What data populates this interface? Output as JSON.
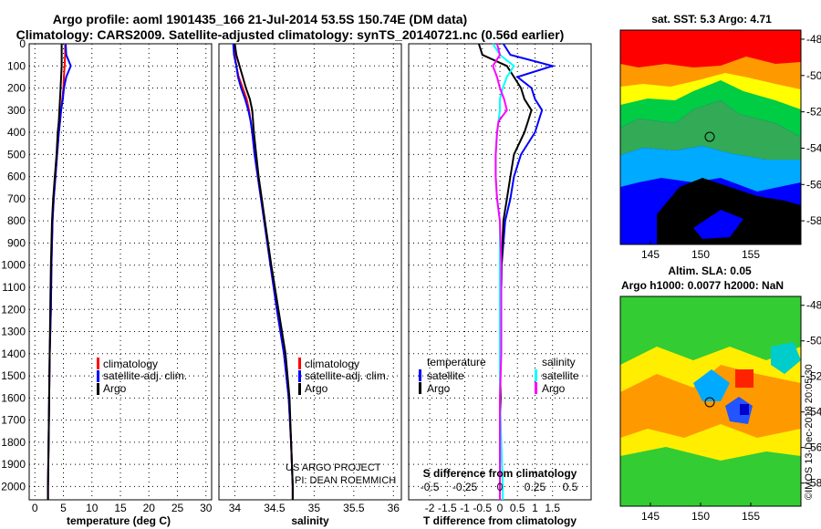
{
  "titles": {
    "line1": "Argo profile: aoml 1901435_166 21-Jul-2014 53.5S 150.74E (DM data)",
    "line2": "Climatology: CARS2009. Satellite-adjusted climatology: synTS_20140721.nc (0.56d earlier)"
  },
  "colors": {
    "climatology": "#ff0000",
    "satellite": "#0000ff",
    "argo": "#000000",
    "sal_satellite": "#00ffff",
    "sal_argo": "#ff00ff"
  },
  "depth_ticks": [
    "0",
    "100",
    "200",
    "300",
    "400",
    "500",
    "600",
    "700",
    "800",
    "900",
    "1000",
    "1100",
    "1200",
    "1300",
    "1400",
    "1500",
    "1600",
    "1700",
    "1800",
    "1900",
    "2000"
  ],
  "temperature": {
    "xlabel": "temperature (deg C)",
    "ticks": [
      "0",
      "5",
      "10",
      "15",
      "20",
      "25",
      "30"
    ],
    "legend": [
      "climatology",
      "satellite-adj. clim.",
      "Argo"
    ]
  },
  "salinity": {
    "xlabel": "salinity",
    "ticks": [
      "34",
      "34.5",
      "35",
      "35.5",
      "36"
    ],
    "legend": [
      "climatology",
      "satellite-adj. clim.",
      "Argo"
    ],
    "watermark": [
      "US ARGO PROJECT",
      "PI: DEAN ROEMMICH"
    ]
  },
  "difference": {
    "xlabel": "T difference from climatology",
    "t_ticks": [
      "-2",
      "-1.5",
      "-1",
      "-0.5",
      "0",
      "0.5",
      "1",
      "1.5"
    ],
    "s_label": "S difference from climatology",
    "s_ticks": [
      "-0.5",
      "-0.25",
      "0",
      "0.25",
      "0.5"
    ],
    "legend_temp_title": "temperature",
    "legend_sal_title": "salinity",
    "legend_temp": [
      "satellite",
      "Argo"
    ],
    "legend_sal": [
      "satellite",
      "Argo"
    ]
  },
  "sst_map": {
    "title": "sat. SST: 5.3 Argo: 4.71",
    "xticks": [
      "145",
      "150",
      "155"
    ],
    "yticks": [
      "-48",
      "-50",
      "-52",
      "-54",
      "-56",
      "-58"
    ]
  },
  "sla_map": {
    "title1": "Altim. SLA: 0.05",
    "title2": "Argo h1000: 0.0077 h2000: NaN",
    "xticks": [
      "145",
      "150",
      "155"
    ],
    "yticks": [
      "-48",
      "-50",
      "-52",
      "-54",
      "-56",
      "-58"
    ]
  },
  "credit": "©IMOS 13-Dec-2018 20:05:30",
  "chart_data": [
    {
      "type": "line",
      "panel": "temperature",
      "xlabel": "temperature (deg C)",
      "ylabel": "",
      "xlim": [
        -1,
        31
      ],
      "ylim": [
        2060,
        0
      ],
      "grid": true,
      "legend_position": "lower-right",
      "depth": [
        0,
        50,
        100,
        150,
        200,
        250,
        300,
        350,
        400,
        500,
        600,
        700,
        800,
        1000,
        1200,
        1400,
        1600,
        1800,
        2000,
        2060
      ],
      "series": [
        {
          "name": "climatology",
          "color": "red",
          "values": [
            5.3,
            5.3,
            5.2,
            5.1,
            5.0,
            4.8,
            4.6,
            4.4,
            4.2,
            3.9,
            3.6,
            3.3,
            3.1,
            2.9,
            2.8,
            2.6,
            2.5,
            2.4,
            2.3,
            2.3
          ]
        },
        {
          "name": "satellite-adj. clim.",
          "color": "blue",
          "values": [
            5.4,
            5.5,
            6.3,
            5.5,
            5.1,
            4.9,
            4.6,
            4.4,
            4.2,
            3.9,
            3.6,
            3.3,
            3.1,
            2.9,
            2.8,
            2.6,
            2.5,
            2.4,
            2.3,
            2.3
          ]
        },
        {
          "name": "Argo",
          "color": "black",
          "values": [
            4.7,
            4.7,
            4.7,
            4.6,
            4.5,
            4.4,
            4.3,
            4.2,
            4.0,
            3.8,
            3.5,
            3.2,
            3.0,
            2.8,
            2.7,
            2.6,
            2.5,
            2.4,
            2.3,
            2.3
          ]
        }
      ]
    },
    {
      "type": "line",
      "panel": "salinity",
      "xlabel": "salinity",
      "ylabel": "",
      "xlim": [
        33.8,
        36.1
      ],
      "ylim": [
        2060,
        0
      ],
      "grid": true,
      "legend_position": "lower-right",
      "depth": [
        0,
        50,
        100,
        150,
        200,
        250,
        300,
        350,
        400,
        500,
        600,
        700,
        800,
        1000,
        1200,
        1400,
        1600,
        1800,
        2000,
        2060
      ],
      "series": [
        {
          "name": "climatology",
          "color": "red",
          "values": [
            34.0,
            34.0,
            34.02,
            34.05,
            34.1,
            34.15,
            34.18,
            34.2,
            34.22,
            34.25,
            34.29,
            34.33,
            34.37,
            34.45,
            34.53,
            34.62,
            34.68,
            34.71,
            34.73,
            34.73
          ]
        },
        {
          "name": "satellite-adj. clim.",
          "color": "blue",
          "values": [
            33.98,
            33.99,
            34.02,
            34.04,
            34.08,
            34.13,
            34.17,
            34.2,
            34.22,
            34.25,
            34.29,
            34.33,
            34.37,
            34.45,
            34.53,
            34.62,
            34.68,
            34.71,
            34.73,
            34.73
          ]
        },
        {
          "name": "Argo",
          "color": "black",
          "values": [
            34.0,
            34.02,
            34.06,
            34.1,
            34.14,
            34.19,
            34.22,
            34.23,
            34.24,
            34.27,
            34.3,
            34.34,
            34.38,
            34.46,
            34.55,
            34.64,
            34.69,
            34.71,
            34.73,
            34.73
          ]
        }
      ]
    },
    {
      "type": "line",
      "panel": "difference",
      "xlabel": "T difference from climatology",
      "ylabel": "",
      "xlim": [
        -2.6,
        2.6
      ],
      "x2label": "S difference from climatology",
      "x2lim": [
        -0.65,
        0.65
      ],
      "ylim": [
        2060,
        0
      ],
      "grid": true,
      "depth": [
        0,
        50,
        100,
        150,
        200,
        250,
        300,
        350,
        400,
        500,
        600,
        700,
        800,
        1000,
        1200,
        1400,
        1600,
        1800,
        2000,
        2060
      ],
      "series": [
        {
          "name": "temperature satellite",
          "axis": "T",
          "color": "blue",
          "values": [
            0.1,
            0.3,
            1.5,
            0.5,
            0.9,
            1.0,
            1.2,
            1.1,
            1.0,
            0.6,
            0.4,
            0.3,
            0.15,
            0.05,
            0.03,
            0.02,
            0.01,
            0.0,
            0.0,
            0.0
          ]
        },
        {
          "name": "temperature Argo",
          "axis": "T",
          "color": "black",
          "values": [
            -0.6,
            -0.5,
            0.2,
            0.4,
            0.6,
            0.7,
            0.9,
            0.8,
            0.7,
            0.4,
            0.3,
            0.2,
            0.1,
            0.05,
            0.03,
            0.0,
            0.02,
            0.0,
            0.0,
            0.0
          ]
        },
        {
          "name": "salinity satellite",
          "axis": "S",
          "color": "cyan",
          "values": [
            -0.05,
            0.0,
            0.1,
            0.05,
            0.02,
            0.0,
            0.0,
            -0.01,
            -0.02,
            -0.03,
            -0.03,
            -0.02,
            0.0,
            0.0,
            0.0,
            0.0,
            0.0,
            0.01,
            0.02,
            0.02
          ]
        },
        {
          "name": "salinity Argo",
          "axis": "S",
          "color": "magenta",
          "values": [
            -0.02,
            0.0,
            -0.05,
            -0.02,
            0.0,
            0.03,
            0.05,
            -0.01,
            -0.02,
            -0.03,
            -0.03,
            -0.02,
            0.0,
            0.01,
            0.01,
            0.01,
            0.0,
            0.0,
            0.0,
            0.0
          ]
        }
      ]
    },
    {
      "type": "heatmap",
      "panel": "sst_map",
      "title": "sat. SST: 5.3 Argo: 4.71",
      "xlim": [
        142,
        160
      ],
      "ylim": [
        -59.3,
        -47.5
      ],
      "marker": {
        "lon": 150.74,
        "lat": -53.5
      }
    },
    {
      "type": "heatmap",
      "panel": "sla_map",
      "title": "Altim. SLA: 0.05",
      "xlim": [
        142,
        160
      ],
      "ylim": [
        -59.3,
        -47.5
      ],
      "marker": {
        "lon": 150.74,
        "lat": -53.5
      }
    }
  ]
}
